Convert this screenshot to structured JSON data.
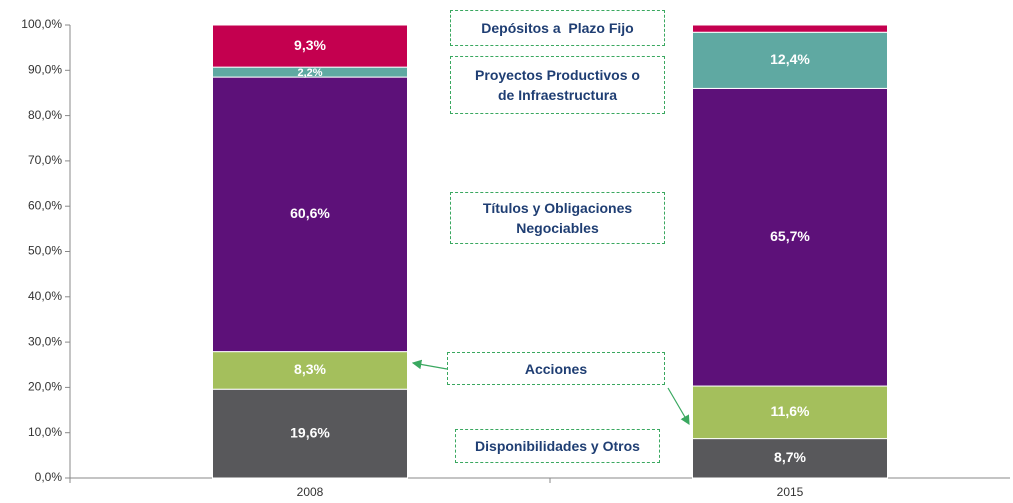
{
  "chart_data": {
    "type": "stacked_bar",
    "categories": [
      "2008",
      "2015"
    ],
    "series": [
      {
        "name": "Disponibilidades y Otros",
        "color": "#58585b",
        "values": [
          19.6,
          8.7
        ],
        "value_labels": [
          "19,6%",
          "8,7%"
        ]
      },
      {
        "name": "Acciones",
        "color": "#a4bf5c",
        "values": [
          8.3,
          11.6
        ],
        "value_labels": [
          "8,3%",
          "11,6%"
        ]
      },
      {
        "name": "Títulos y Obligaciones Negociables",
        "color": "#5d1179",
        "values": [
          60.6,
          65.7
        ],
        "value_labels": [
          "60,6%",
          "65,7%"
        ]
      },
      {
        "name": "Proyectos Productivos o de Infraestructura",
        "color": "#5fa9a2",
        "values": [
          2.2,
          12.4
        ],
        "value_labels": [
          "2,2%",
          "12,4%"
        ]
      },
      {
        "name": "Depósitos a  Plazo Fijo",
        "color": "#c4004f",
        "values": [
          9.3,
          1.6
        ],
        "value_labels": [
          "9,3%",
          null
        ]
      }
    ],
    "ylim": [
      0,
      100
    ],
    "yticks": [
      {
        "value": 0,
        "label": "0,0%"
      },
      {
        "value": 10,
        "label": "10,0%"
      },
      {
        "value": 20,
        "label": "20,0%"
      },
      {
        "value": 30,
        "label": "30,0%"
      },
      {
        "value": 40,
        "label": "40,0%"
      },
      {
        "value": 50,
        "label": "50,0%"
      },
      {
        "value": 60,
        "label": "60,0%"
      },
      {
        "value": 70,
        "label": "70,0%"
      },
      {
        "value": 80,
        "label": "80,0%"
      },
      {
        "value": 90,
        "label": "90,0%"
      },
      {
        "value": 100,
        "label": "100,0%"
      }
    ]
  }
}
